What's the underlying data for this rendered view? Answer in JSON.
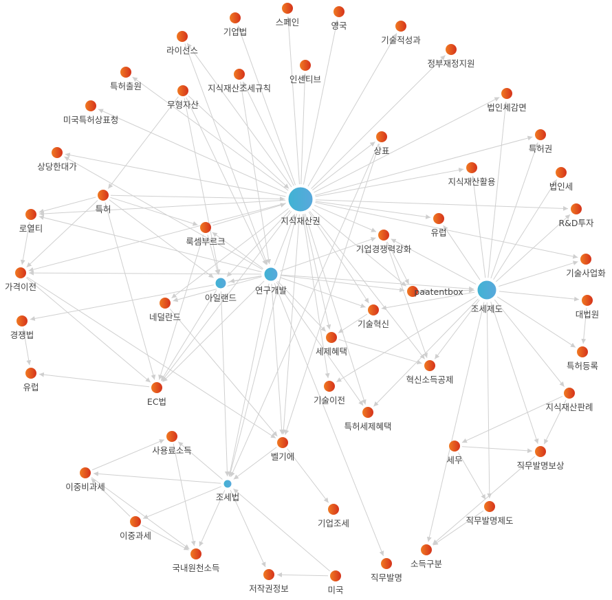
{
  "colors": {
    "hub": "#46b2d6",
    "node_start": "#f07a22",
    "node_end": "#d5331b",
    "edge": "#cfcfcf",
    "label": "#444444"
  },
  "nodes": [
    {
      "id": "지식재산권",
      "kind": "hub"
    },
    {
      "id": "연구개발",
      "kind": "hub"
    },
    {
      "id": "조세제도",
      "kind": "hub"
    },
    {
      "id": "아일랜드",
      "kind": "hub"
    },
    {
      "id": "조세법",
      "kind": "hub"
    },
    {
      "id": "스페인"
    },
    {
      "id": "영국"
    },
    {
      "id": "기업법"
    },
    {
      "id": "라이선스"
    },
    {
      "id": "기술적성과"
    },
    {
      "id": "정부재정지원"
    },
    {
      "id": "인센티브"
    },
    {
      "id": "지식재산조세규칙"
    },
    {
      "id": "특허출원"
    },
    {
      "id": "무형자산"
    },
    {
      "id": "미국특허상표청"
    },
    {
      "id": "법인세감면"
    },
    {
      "id": "상표"
    },
    {
      "id": "특허권"
    },
    {
      "id": "상당한대가"
    },
    {
      "id": "지식재산활용"
    },
    {
      "id": "법인세"
    },
    {
      "id": "특허"
    },
    {
      "id": "R&D투자"
    },
    {
      "id": "로열티"
    },
    {
      "id": "룩셈부르크"
    },
    {
      "id": "유럽R",
      "label": "유럽"
    },
    {
      "id": "기업경쟁력강화"
    },
    {
      "id": "기술사업화"
    },
    {
      "id": "가격이전"
    },
    {
      "id": "paatentbox"
    },
    {
      "id": "대법원"
    },
    {
      "id": "네덜란드"
    },
    {
      "id": "기술혁신"
    },
    {
      "id": "경쟁법"
    },
    {
      "id": "세제혜택"
    },
    {
      "id": "특허등록"
    },
    {
      "id": "혁신소득공제"
    },
    {
      "id": "유럽L",
      "label": "유럽"
    },
    {
      "id": "EC법"
    },
    {
      "id": "기술이전"
    },
    {
      "id": "지식재산판례"
    },
    {
      "id": "특허세제혜택"
    },
    {
      "id": "사용료소득"
    },
    {
      "id": "벨기에"
    },
    {
      "id": "세무"
    },
    {
      "id": "직무발명보상"
    },
    {
      "id": "이중비과세"
    },
    {
      "id": "이중과세"
    },
    {
      "id": "직무발명제도"
    },
    {
      "id": "기업조세"
    },
    {
      "id": "국내원천소득"
    },
    {
      "id": "소득구분"
    },
    {
      "id": "직무발명"
    },
    {
      "id": "저작권정보"
    },
    {
      "id": "미국"
    }
  ],
  "edges": [
    [
      "지식재산권",
      "스페인"
    ],
    [
      "지식재산권",
      "영국"
    ],
    [
      "지식재산권",
      "기업법"
    ],
    [
      "지식재산권",
      "라이선스"
    ],
    [
      "지식재산권",
      "기술적성과"
    ],
    [
      "지식재산권",
      "정부재정지원"
    ],
    [
      "지식재산권",
      "인센티브"
    ],
    [
      "지식재산권",
      "지식재산조세규칙"
    ],
    [
      "지식재산권",
      "특허출원"
    ],
    [
      "지식재산권",
      "미국특허상표청"
    ],
    [
      "지식재산권",
      "상당한대가"
    ],
    [
      "지식재산권",
      "법인세감면"
    ],
    [
      "지식재산권",
      "상표"
    ],
    [
      "지식재산권",
      "특허권"
    ],
    [
      "지식재산권",
      "지식재산활용"
    ],
    [
      "지식재산권",
      "R&D투자"
    ],
    [
      "지식재산권",
      "유럽R"
    ],
    [
      "지식재산권",
      "기업경쟁력강화"
    ],
    [
      "지식재산권",
      "기술사업화"
    ],
    [
      "지식재산권",
      "paatentbox"
    ],
    [
      "지식재산권",
      "기술혁신"
    ],
    [
      "지식재산권",
      "세제혜택"
    ],
    [
      "지식재산권",
      "혁신소득공제"
    ],
    [
      "지식재산권",
      "기술이전"
    ],
    [
      "지식재산권",
      "특허세제혜택"
    ],
    [
      "지식재산권",
      "벨기에"
    ],
    [
      "지식재산권",
      "조세법"
    ],
    [
      "지식재산권",
      "아일랜드"
    ],
    [
      "지식재산권",
      "로열티"
    ],
    [
      "지식재산권",
      "가격이전"
    ],
    [
      "지식재산권",
      "네덜란드"
    ],
    [
      "지식재산권",
      "EC법"
    ],
    [
      "특허",
      "지식재산권"
    ],
    [
      "무형자산",
      "지식재산권"
    ],
    [
      "룩셈부르크",
      "지식재산권"
    ],
    [
      "연구개발",
      "지식재산권"
    ],
    [
      "연구개발",
      "아일랜드"
    ],
    [
      "연구개발",
      "룩셈부르크"
    ],
    [
      "연구개발",
      "가격이전"
    ],
    [
      "연구개발",
      "로열티"
    ],
    [
      "연구개발",
      "네덜란드"
    ],
    [
      "연구개발",
      "EC법"
    ],
    [
      "연구개발",
      "기업경쟁력강화"
    ],
    [
      "연구개발",
      "paatentbox"
    ],
    [
      "연구개발",
      "기술혁신"
    ],
    [
      "연구개발",
      "세제혜택"
    ],
    [
      "연구개발",
      "벨기에"
    ],
    [
      "연구개발",
      "조세법"
    ],
    [
      "연구개발",
      "특허세제혜택"
    ],
    [
      "연구개발",
      "직무발명"
    ],
    [
      "연구개발",
      "조세제도"
    ],
    [
      "연구개발",
      "경쟁법"
    ],
    [
      "연구개발",
      "상당한대가"
    ],
    [
      "조세제도",
      "법인세감면"
    ],
    [
      "조세제도",
      "특허권"
    ],
    [
      "조세제도",
      "법인세"
    ],
    [
      "조세제도",
      "R&D투자"
    ],
    [
      "조세제도",
      "기술사업화"
    ],
    [
      "조세제도",
      "대법원"
    ],
    [
      "조세제도",
      "유럽R"
    ],
    [
      "조세제도",
      "지식재산활용"
    ],
    [
      "조세제도",
      "기업경쟁력강화"
    ],
    [
      "조세제도",
      "paatentbox"
    ],
    [
      "paatentbox",
      "조세제도"
    ],
    [
      "조세제도",
      "기술혁신"
    ],
    [
      "조세제도",
      "기술이전"
    ],
    [
      "조세제도",
      "혁신소득공제"
    ],
    [
      "조세제도",
      "특허등록"
    ],
    [
      "조세제도",
      "지식재산판례"
    ],
    [
      "조세제도",
      "직무발명보상"
    ],
    [
      "조세제도",
      "직무발명제도"
    ],
    [
      "조세제도",
      "소득구분"
    ],
    [
      "조세제도",
      "특허세제혜택"
    ],
    [
      "특허",
      "로열티"
    ],
    [
      "특허",
      "가격이전"
    ],
    [
      "특허",
      "룩셈부르크"
    ],
    [
      "특허",
      "아일랜드"
    ],
    [
      "특허",
      "EC법"
    ],
    [
      "무형자산",
      "특허"
    ],
    [
      "무형자산",
      "아일랜드"
    ],
    [
      "무형자산",
      "연구개발"
    ],
    [
      "상표",
      "벨기에"
    ],
    [
      "상표",
      "조세법"
    ],
    [
      "기업경쟁력강화",
      "혁신소득공제"
    ],
    [
      "기업경쟁력강화",
      "paatentbox"
    ],
    [
      "세제혜택",
      "혁신소득공제"
    ],
    [
      "기술혁신",
      "세제혜택"
    ],
    [
      "로열티",
      "가격이전"
    ],
    [
      "경쟁법",
      "유럽L"
    ],
    [
      "EC법",
      "유럽L"
    ],
    [
      "아일랜드",
      "EC법"
    ],
    [
      "아일랜드",
      "조세법"
    ],
    [
      "룩셈부르크",
      "EC법"
    ],
    [
      "룩셈부르크",
      "아일랜드"
    ],
    [
      "네덜란드",
      "벨기에"
    ],
    [
      "가격이전",
      "EC법"
    ],
    [
      "가격이전",
      "벨기에"
    ],
    [
      "조세법",
      "사용료소득"
    ],
    [
      "조세법",
      "이중비과세"
    ],
    [
      "조세법",
      "이중과세"
    ],
    [
      "조세법",
      "국내원천소득"
    ],
    [
      "조세법",
      "저작권정보"
    ],
    [
      "미국",
      "조세법"
    ],
    [
      "벨기에",
      "조세법"
    ],
    [
      "벨기에",
      "기업조세"
    ],
    [
      "이중비과세",
      "사용료소득"
    ],
    [
      "이중과세",
      "이중비과세"
    ],
    [
      "이중과세",
      "국내원천소득"
    ],
    [
      "사용료소득",
      "국내원천소득"
    ],
    [
      "이중비과세",
      "국내원천소득"
    ],
    [
      "미국",
      "저작권정보"
    ],
    [
      "지식재산판례",
      "세무"
    ],
    [
      "지식재산판례",
      "직무발명보상"
    ],
    [
      "세무",
      "직무발명보상"
    ],
    [
      "세무",
      "직무발명제도"
    ],
    [
      "직무발명보상",
      "소득구분"
    ],
    [
      "직무발명제도",
      "소득구분"
    ],
    [
      "대법원",
      "특허등록"
    ],
    [
      "지식재산조세규칙",
      "연구개발"
    ],
    [
      "라이선스",
      "연구개발"
    ]
  ]
}
